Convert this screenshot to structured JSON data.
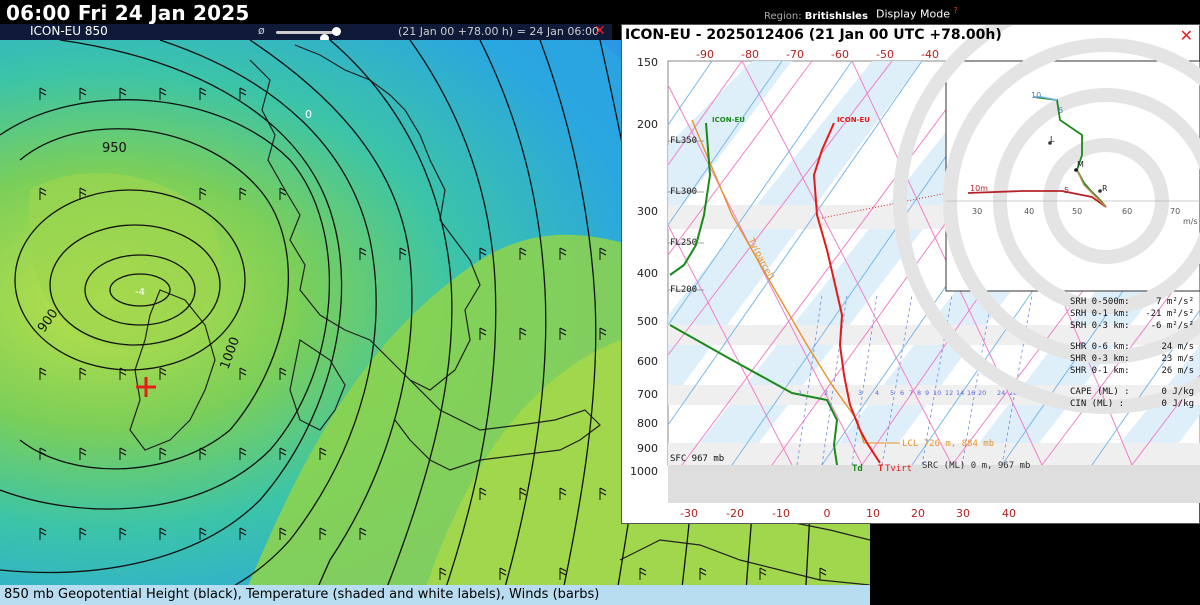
{
  "header": {
    "datetime": "06:00 Fri 24 Jan 2025",
    "region_label": "Region:",
    "region_value": "BritishIsles",
    "display_mode": "Display Mode",
    "help_mark": "?"
  },
  "map_panel": {
    "model": "ICON-EU 850",
    "phi_icon": "ø",
    "valid_text": "(21 Jan 00 +78.00 h) = 24 Jan 06:00",
    "close": "✕",
    "caption": "850 mb Geopotential Height (black), Temperature (shaded and white labels), Winds (barbs)",
    "contour_labels": [
      "950",
      "900",
      "1000",
      "0",
      "-4"
    ],
    "colors": {
      "sea_blue": "#2aa6e0",
      "cyan": "#3cc4cf",
      "green": "#8fd44a",
      "yellow_green": "#bfe14a",
      "land_line": "#222222",
      "marker": "#e0201a"
    }
  },
  "sounding": {
    "title": "ICON-EU - 2025012406 (21 Jan 00 UTC +78.00h)",
    "close": "✕",
    "pressure_levels": [
      "150",
      "200",
      "300",
      "400",
      "500",
      "600",
      "700",
      "800",
      "900",
      "1000"
    ],
    "top_temps": [
      "-90",
      "-80",
      "-70",
      "-60",
      "-50",
      "-40"
    ],
    "bottom_temps": [
      "-30",
      "-20",
      "-10",
      "0",
      "10",
      "20",
      "30",
      "40"
    ],
    "flight_levels": [
      "FL350",
      "FL300",
      "FL250",
      "FL200"
    ],
    "mixing_ratios": [
      "1",
      "2",
      "3",
      "4",
      "5",
      "6",
      "7",
      "8",
      "9",
      "10",
      "12",
      "14",
      "16",
      "20",
      "24",
      "28",
      "32",
      "36"
    ],
    "labels": {
      "dewpoint_model": "ICON-EU",
      "temp_model": "ICON-EU",
      "tv_parcel": "Tv(parcel)",
      "sfc": "SFC 967 mb",
      "lcl": "LCL 726 m, 884 mb",
      "src": "SRC (ML) 0 m, 967 mb",
      "td": "Td",
      "t": "T",
      "tvirt": "Tvirt"
    },
    "hodograph": {
      "ring_labels": [
        "30",
        "40",
        "50",
        "60",
        "70"
      ],
      "unit": "m/s",
      "point_labels": [
        "10",
        "6",
        "L",
        "M",
        "R",
        "5",
        "10m"
      ]
    },
    "indices": [
      {
        "name": "SRH 0-500m:",
        "value": "7 m²/s²"
      },
      {
        "name": "SRH 0-1 km:",
        "value": "-21 m²/s²"
      },
      {
        "name": "SRH 0-3 km:",
        "value": "-6 m²/s²"
      },
      {
        "name": "SHR 0-6 km:",
        "value": "24 m/s"
      },
      {
        "name": "SHR 0-3 km:",
        "value": "23 m/s"
      },
      {
        "name": "SHR 0-1 km:",
        "value": "26 m/s"
      },
      {
        "name": "CAPE (ML) :",
        "value": "0 J/kg"
      },
      {
        "name": "CIN  (ML) :",
        "value": "0 J/kg"
      }
    ],
    "colors": {
      "temp": "#e41a1a",
      "dew": "#1a8a1a",
      "parcel": "#e8922a",
      "isotherm": "#7ab8e8",
      "dry_adiabat": "#f080c8",
      "axis_top": "#b22222",
      "hodo_ring": "#e6e6e6"
    }
  }
}
